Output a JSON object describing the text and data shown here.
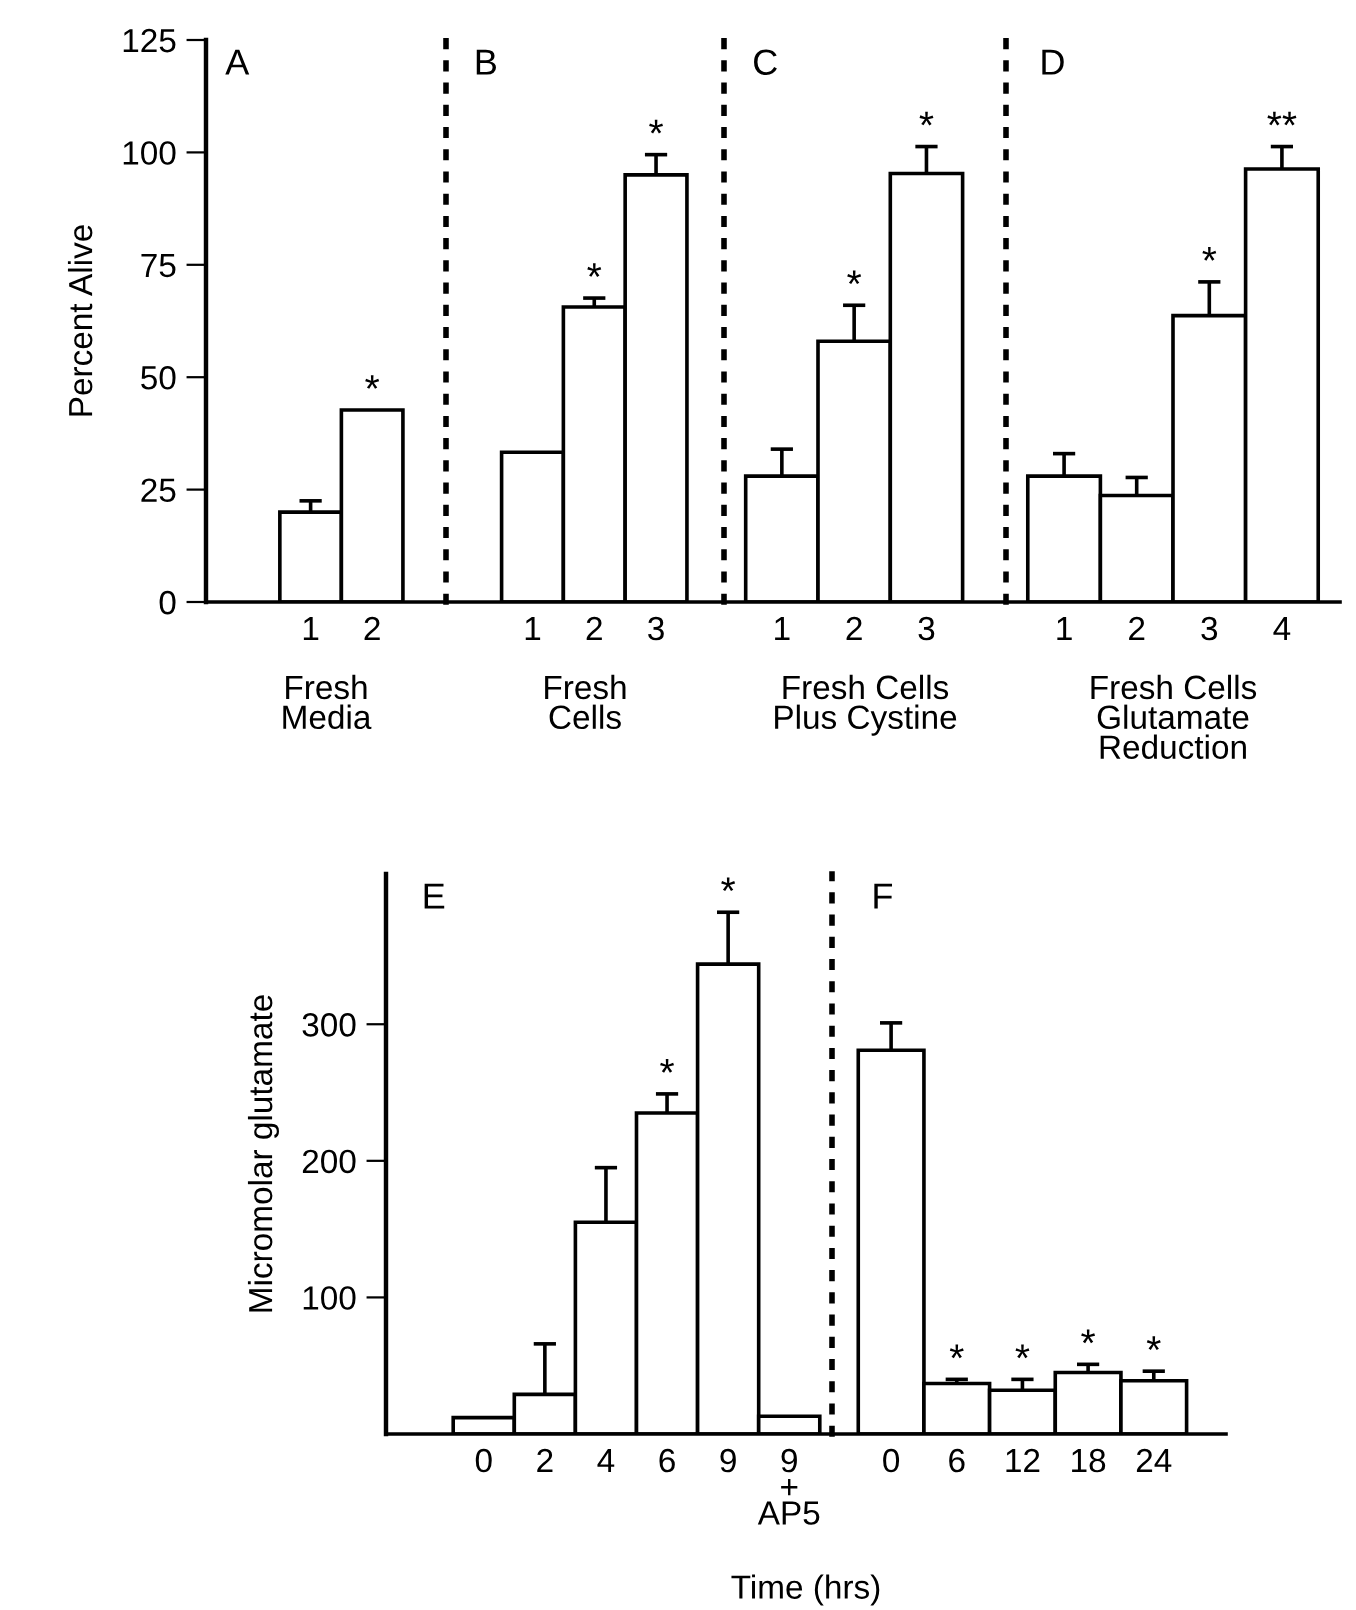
{
  "chart_data": [
    {
      "type": "bar",
      "title": "A",
      "ylabel": "Percent Alive",
      "xlabel": "Fresh\nMedia",
      "categories": [
        "1",
        "2"
      ],
      "values": [
        20,
        42.7
      ],
      "errors": [
        2.5,
        null
      ],
      "value_labels": [
        null,
        "*"
      ],
      "color": "#ffffff",
      "ylim": [
        0,
        125
      ],
      "yticks": [
        0,
        25,
        50,
        75,
        100,
        125
      ],
      "grid": false
    },
    {
      "type": "bar",
      "title": "B",
      "xlabel": "Fresh\nCells",
      "categories": [
        "1",
        "2",
        "3"
      ],
      "values": [
        33.3,
        65.6,
        95
      ],
      "errors": [
        null,
        2,
        4.5
      ],
      "value_labels": [
        null,
        "*",
        "*"
      ],
      "color": "#ffffff",
      "ylim": [
        0,
        125
      ],
      "tick_labels": "x",
      "grid": false
    },
    {
      "type": "bar",
      "title": "C",
      "xlabel": "Fresh Cells\nPlus Cystine",
      "categories": [
        "1",
        "2",
        "3"
      ],
      "values": [
        28,
        58,
        95.3
      ],
      "errors": [
        6,
        8,
        6
      ],
      "value_labels": [
        null,
        "*",
        "*"
      ],
      "color": "#ffffff",
      "ylim": [
        0,
        125
      ],
      "tick_labels": "x",
      "grid": false
    },
    {
      "type": "bar",
      "title": "D",
      "xlabel": "Fresh Cells\nGlutamate\nReduction",
      "categories": [
        "1",
        "2",
        "3",
        "4"
      ],
      "values": [
        28,
        23.7,
        63.7,
        96.3
      ],
      "errors": [
        5,
        4,
        7.5,
        5
      ],
      "value_labels": [
        null,
        null,
        "*",
        "**"
      ],
      "color": "#ffffff",
      "ylim": [
        0,
        125
      ],
      "tick_labels": "x",
      "grid": false
    },
    {
      "type": "bar",
      "title": "E",
      "ylabel": "Micromolar glutamate",
      "xlabel": "Time (hrs)",
      "categories": [
        "0",
        "2",
        "4",
        "6",
        "9",
        "9\n+\nAP5"
      ],
      "values": [
        12,
        29,
        155,
        235,
        344,
        13
      ],
      "errors": [
        null,
        37,
        40,
        14,
        38,
        null
      ],
      "value_labels": [
        null,
        null,
        null,
        "*",
        "*",
        null
      ],
      "color": "#ffffff",
      "ylim": [
        0,
        410
      ],
      "yticks": [
        100,
        200,
        300
      ],
      "grid": false
    },
    {
      "type": "bar",
      "title": "F",
      "categories": [
        "0",
        "6",
        "12",
        "18",
        "24"
      ],
      "values": [
        281,
        37,
        32,
        45,
        39
      ],
      "errors": [
        20,
        3,
        8,
        6,
        7
      ],
      "value_labels": [
        null,
        "*",
        "*",
        "*",
        "*"
      ],
      "color": "#ffffff",
      "ylim": [
        0,
        410
      ],
      "tick_labels": "x",
      "grid": false
    }
  ]
}
